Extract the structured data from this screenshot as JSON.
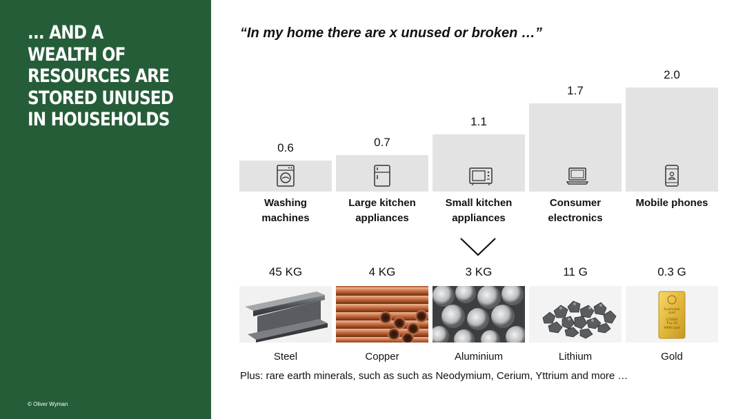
{
  "sidebar": {
    "title": "... AND A WEALTH OF RESOURCES ARE STORED UNUSED IN HOUSEHOLDS",
    "copyright": "© Oliver Wyman",
    "background_color": "#265d39"
  },
  "quote": "“In my home there are x unused or broken …”",
  "chart_data": {
    "type": "bar",
    "categories": [
      "Washing\nmachines",
      "Large kitchen\nappliances",
      "Small kitchen\nappliances",
      "Consumer\nelectronics",
      "Mobile phones"
    ],
    "values": [
      0.6,
      0.7,
      1.1,
      1.7,
      2.0
    ],
    "value_labels": [
      "0.6",
      "0.7",
      "1.1",
      "1.7",
      "2.0"
    ],
    "icons": [
      "washing-machine-icon",
      "fridge-icon",
      "microwave-icon",
      "laptop-icon",
      "mobile-phone-icon"
    ],
    "ylim": [
      0,
      2.0
    ],
    "grid": false,
    "bar_color": "#e3e3e3"
  },
  "materials": [
    {
      "amount": "45 KG",
      "name": "Steel",
      "image": "steel-beam-image"
    },
    {
      "amount": "4 KG",
      "name": "Copper",
      "image": "copper-pipes-image"
    },
    {
      "amount": "3 KG",
      "name": "Aluminium",
      "image": "aluminium-rods-image"
    },
    {
      "amount": "11 G",
      "name": "Lithium",
      "image": "lithium-nuggets-image"
    },
    {
      "amount": "0.3 G",
      "name": "Gold",
      "image": "gold-bar-image"
    }
  ],
  "gold_bar_text": "Scottsdale Gold 1/100th Troy Oz 9999 Gold",
  "footnote": "Plus: rare earth minerals, such as such as Neodymium, Cerium, Yttrium and more …"
}
